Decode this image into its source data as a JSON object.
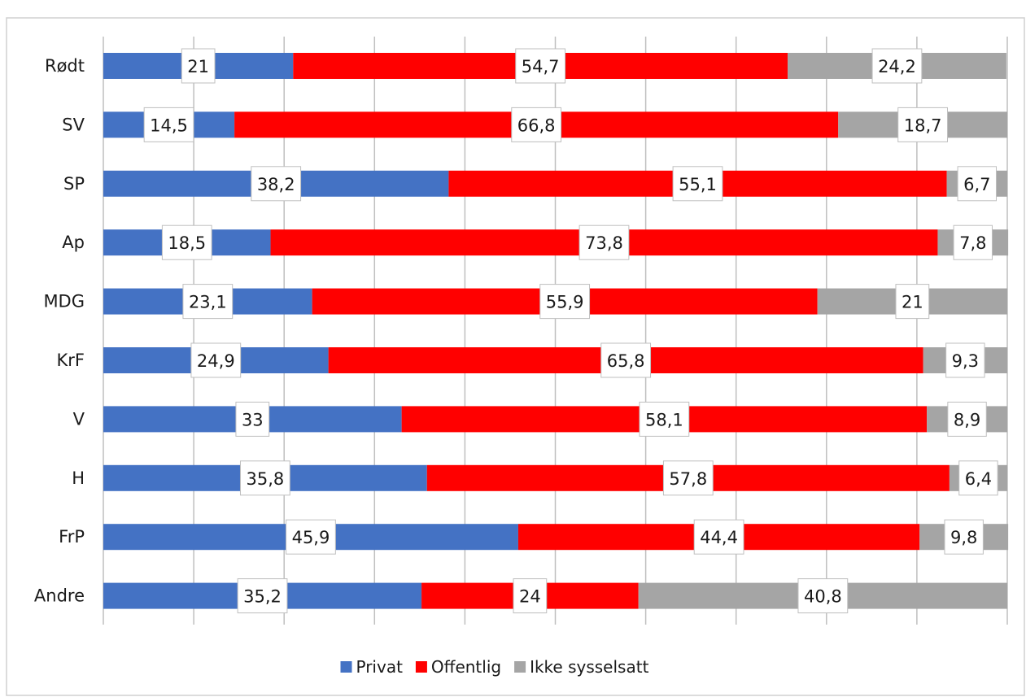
{
  "chart_data": {
    "type": "bar",
    "orientation": "horizontal",
    "stacked": true,
    "title": "",
    "xlabel": "",
    "ylabel": "",
    "xlim": [
      0,
      100
    ],
    "grid": true,
    "legend_position": "bottom",
    "categories": [
      "Rødt",
      "SV",
      "SP",
      "Ap",
      "MDG",
      "KrF",
      "V",
      "H",
      "FrP",
      "Andre"
    ],
    "series": [
      {
        "name": "Privat",
        "color": "#4472C4",
        "values": [
          21,
          14.5,
          38.2,
          18.5,
          23.1,
          24.9,
          33,
          35.8,
          45.9,
          35.2
        ],
        "labels": [
          "21",
          "14,5",
          "38,2",
          "18,5",
          "23,1",
          "24,9",
          "33",
          "35,8",
          "45,9",
          "35,2"
        ]
      },
      {
        "name": "Offentlig",
        "color": "#FF0000",
        "values": [
          54.7,
          66.8,
          55.1,
          73.8,
          55.9,
          65.8,
          58.1,
          57.8,
          44.4,
          24
        ],
        "labels": [
          "54,7",
          "66,8",
          "55,1",
          "73,8",
          "55,9",
          "65,8",
          "58,1",
          "57,8",
          "44,4",
          "24"
        ]
      },
      {
        "name": "Ikke sysselsatt",
        "color": "#A5A5A5",
        "values": [
          24.2,
          18.7,
          6.7,
          7.8,
          21,
          9.3,
          8.9,
          6.4,
          9.8,
          40.8
        ],
        "labels": [
          "24,2",
          "18,7",
          "6,7",
          "7,8",
          "21",
          "9,3",
          "8,9",
          "6,4",
          "9,8",
          "40,8"
        ]
      }
    ]
  }
}
